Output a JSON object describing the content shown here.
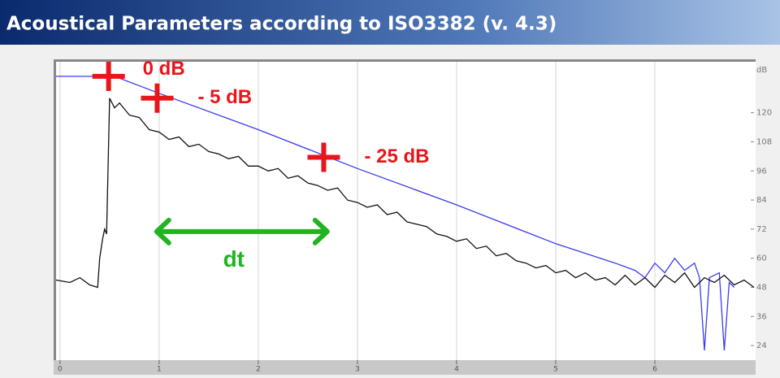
{
  "window": {
    "title": "Acoustical Parameters according to ISO3382 (v. 4.3)"
  },
  "chart_data": {
    "type": "line",
    "y_unit_label": "dB",
    "xlim": [
      -0.04,
      7.0
    ],
    "ylim": [
      18,
      141
    ],
    "xticks": [
      0,
      1,
      2,
      3,
      4,
      5,
      6
    ],
    "yticks": [
      24,
      36,
      48,
      60,
      72,
      84,
      96,
      108,
      120
    ],
    "grid": "x",
    "series": [
      {
        "color": "#3b3bf2",
        "x": [
          -0.04,
          0.55,
          1.0,
          2.0,
          3.0,
          4.0,
          5.0,
          5.6,
          5.8,
          5.9,
          6.0,
          6.1,
          6.2,
          6.3,
          6.4,
          6.45,
          6.5,
          6.55,
          6.65,
          6.7,
          6.75,
          6.8
        ],
        "values": [
          135,
          135,
          128,
          113,
          97,
          82,
          66,
          58,
          55,
          52,
          58,
          54,
          60,
          55,
          58,
          52,
          22,
          52,
          54,
          22,
          50,
          48
        ]
      },
      {
        "color": "#111111",
        "x": [
          -0.04,
          0.1,
          0.2,
          0.3,
          0.38,
          0.4,
          0.43,
          0.45,
          0.47,
          0.5,
          0.55,
          0.6,
          0.7,
          0.8,
          0.9,
          1.0,
          1.1,
          1.2,
          1.3,
          1.4,
          1.5,
          1.6,
          1.7,
          1.8,
          1.9,
          2.0,
          2.1,
          2.2,
          2.3,
          2.4,
          2.5,
          2.6,
          2.7,
          2.8,
          2.9,
          3.0,
          3.1,
          3.2,
          3.3,
          3.4,
          3.5,
          3.6,
          3.7,
          3.8,
          3.9,
          4.0,
          4.1,
          4.2,
          4.3,
          4.4,
          4.5,
          4.6,
          4.7,
          4.8,
          4.9,
          5.0,
          5.1,
          5.2,
          5.3,
          5.4,
          5.5,
          5.6,
          5.7,
          5.8,
          5.9,
          6.0,
          6.1,
          6.2,
          6.3,
          6.4,
          6.5,
          6.6,
          6.7,
          6.8,
          6.9,
          7.0
        ],
        "values": [
          51,
          50,
          52,
          49,
          48,
          60,
          68,
          72,
          70,
          126,
          122,
          124,
          119,
          118,
          113,
          112,
          109,
          110,
          106,
          107,
          104,
          103,
          101,
          102,
          98,
          98,
          96,
          97,
          93,
          94,
          91,
          90,
          88,
          89,
          84,
          83,
          81,
          82,
          78,
          79,
          75,
          74,
          73,
          70,
          69,
          67,
          68,
          64,
          65,
          61,
          62,
          59,
          58,
          56,
          57,
          54,
          55,
          52,
          54,
          51,
          52,
          49,
          53,
          49,
          52,
          48,
          53,
          50,
          54,
          48,
          52,
          50,
          53,
          49,
          51,
          48
        ]
      }
    ],
    "annotations": [
      {
        "text": "0 dB",
        "x": 0.49,
        "y": 135
      },
      {
        "text": "- 5 dB",
        "x": 0.98,
        "y": 126
      },
      {
        "text": "- 25 dB",
        "x": 2.66,
        "y": 101.6
      }
    ],
    "interval": {
      "text": "dt",
      "x": [
        0.95,
        2.72
      ],
      "y": 71,
      "label_y": 59
    }
  }
}
